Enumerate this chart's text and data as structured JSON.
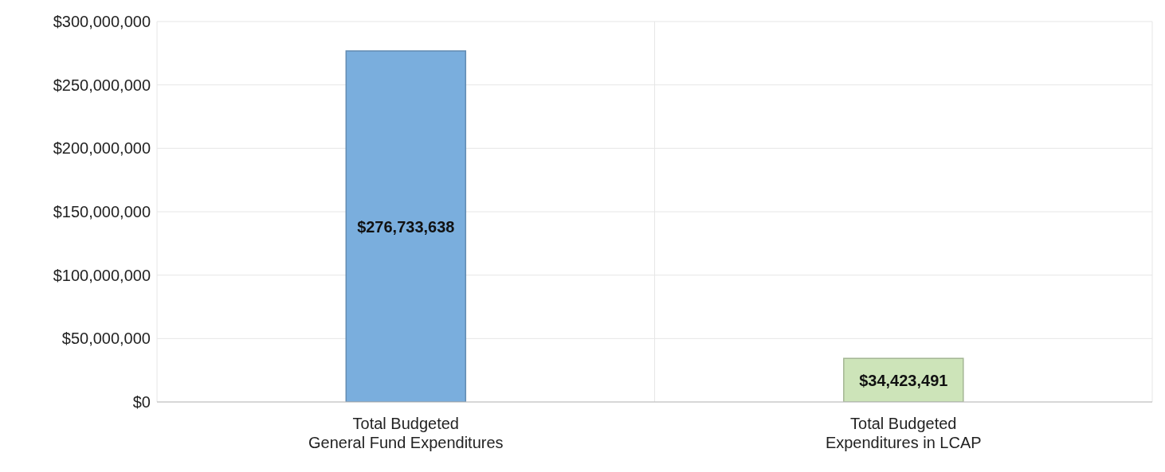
{
  "chart_data": {
    "type": "bar",
    "categories": [
      "Total Budgeted\nGeneral Fund Expenditures",
      "Total Budgeted\nExpenditures in LCAP"
    ],
    "values": [
      276733638,
      34423491
    ],
    "colors": [
      "#7aaedd",
      "#cde4b9"
    ],
    "value_labels": [
      "$276,733,638",
      "$34,423,491"
    ],
    "ylim": [
      0,
      300000000
    ],
    "yticks": [
      {
        "value": 0,
        "label": "$0"
      },
      {
        "value": 50000000,
        "label": "$50,000,000"
      },
      {
        "value": 100000000,
        "label": "$100,000,000"
      },
      {
        "value": 150000000,
        "label": "$150,000,000"
      },
      {
        "value": 200000000,
        "label": "$200,000,000"
      },
      {
        "value": 250000000,
        "label": "$250,000,000"
      },
      {
        "value": 300000000,
        "label": "$300,000,000"
      }
    ],
    "grid": true
  }
}
